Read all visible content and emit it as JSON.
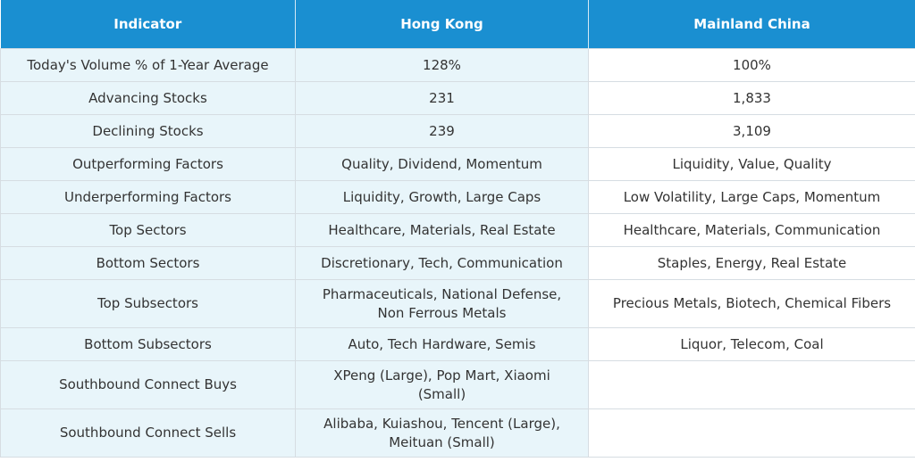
{
  "table": {
    "columns": [
      "Indicator",
      "Hong Kong",
      "Mainland China"
    ],
    "rows": [
      [
        "Today's Volume % of 1-Year Average",
        "128%",
        "100%"
      ],
      [
        "Advancing Stocks",
        "231",
        "1,833"
      ],
      [
        "Declining Stocks",
        "239",
        "3,109"
      ],
      [
        "Outperforming Factors",
        "Quality, Dividend, Momentum",
        "Liquidity, Value, Quality"
      ],
      [
        "Underperforming Factors",
        "Liquidity, Growth, Large Caps",
        "Low Volatility, Large Caps, Momentum"
      ],
      [
        "Top Sectors",
        "Healthcare, Materials, Real Estate",
        "Healthcare, Materials, Communication"
      ],
      [
        "Bottom Sectors",
        "Discretionary, Tech, Communication",
        "Staples, Energy, Real Estate"
      ],
      [
        "Top Subsectors",
        "Pharmaceuticals, National Defense, Non Ferrous Metals",
        "Precious Metals, Biotech, Chemical Fibers"
      ],
      [
        "Bottom Subsectors",
        "Auto, Tech Hardware, Semis",
        "Liquor, Telecom, Coal"
      ],
      [
        "Southbound Connect Buys",
        "XPeng (Large), Pop Mart, Xiaomi (Small)"
      ],
      [
        "Southbound Connect Sells",
        "Alibaba, Kuiashou, Tencent (Large), Meituan (Small)"
      ]
    ]
  }
}
